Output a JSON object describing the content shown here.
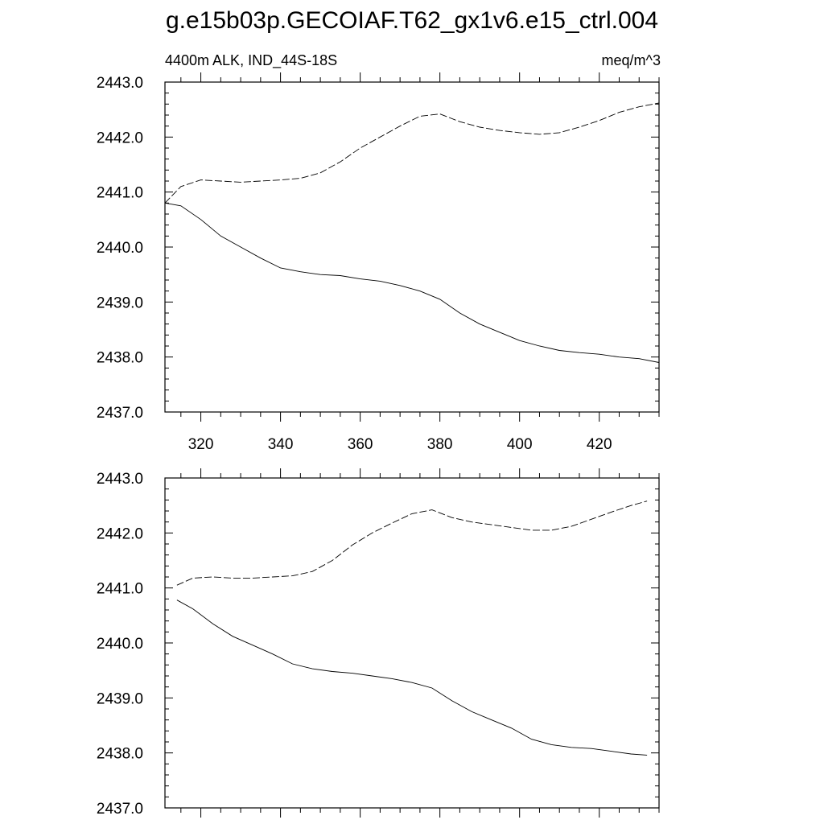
{
  "title": "g.e15b03p.GECOIAF.T62_gx1v6.e15_ctrl.004",
  "left_string": "4400m ALK, IND_44S-18S",
  "right_string": "meq/m^3",
  "chart_data": [
    {
      "type": "line",
      "panel": "top",
      "ylim": [
        2437.0,
        2443.0
      ],
      "xlim": [
        311,
        435
      ],
      "y_ticks": [
        "2437.0",
        "2438.0",
        "2439.0",
        "2440.0",
        "2441.0",
        "2442.0",
        "2443.0"
      ],
      "x_ticks": [
        "320",
        "340",
        "360",
        "380",
        "400",
        "420"
      ],
      "grid": false,
      "series": [
        {
          "style": "solid",
          "x": [
            311,
            315,
            320,
            325,
            330,
            335,
            340,
            345,
            350,
            355,
            360,
            365,
            370,
            375,
            380,
            385,
            390,
            395,
            400,
            405,
            410,
            415,
            420,
            425,
            430,
            435
          ],
          "y": [
            2440.8,
            2440.75,
            2440.5,
            2440.2,
            2440.0,
            2439.8,
            2439.62,
            2439.55,
            2439.5,
            2439.48,
            2439.42,
            2439.38,
            2439.3,
            2439.2,
            2439.05,
            2438.8,
            2438.6,
            2438.45,
            2438.3,
            2438.2,
            2438.12,
            2438.08,
            2438.05,
            2438.0,
            2437.97,
            2437.9
          ]
        },
        {
          "style": "dashed",
          "x": [
            311,
            315,
            320,
            325,
            330,
            335,
            340,
            345,
            350,
            355,
            360,
            365,
            370,
            375,
            380,
            385,
            390,
            395,
            400,
            405,
            410,
            415,
            420,
            425,
            430,
            435
          ],
          "y": [
            2440.8,
            2441.1,
            2441.22,
            2441.2,
            2441.18,
            2441.2,
            2441.22,
            2441.25,
            2441.35,
            2441.55,
            2441.8,
            2442.0,
            2442.2,
            2442.38,
            2442.42,
            2442.28,
            2442.18,
            2442.12,
            2442.08,
            2442.05,
            2442.08,
            2442.18,
            2442.3,
            2442.45,
            2442.55,
            2442.62
          ]
        }
      ]
    },
    {
      "type": "line",
      "panel": "bottom",
      "ylim": [
        2437.0,
        2443.0
      ],
      "xlim": [
        311,
        435
      ],
      "y_ticks": [
        "2437.0",
        "2438.0",
        "2439.0",
        "2440.0",
        "2441.0",
        "2442.0",
        "2443.0"
      ],
      "grid": false,
      "series": [
        {
          "style": "solid",
          "x": [
            314,
            318,
            323,
            328,
            333,
            338,
            343,
            348,
            353,
            358,
            363,
            368,
            373,
            378,
            383,
            388,
            393,
            398,
            403,
            408,
            413,
            418,
            423,
            428,
            432
          ],
          "y": [
            2440.78,
            2440.62,
            2440.35,
            2440.12,
            2439.96,
            2439.8,
            2439.62,
            2439.53,
            2439.48,
            2439.45,
            2439.4,
            2439.35,
            2439.28,
            2439.18,
            2438.95,
            2438.75,
            2438.6,
            2438.45,
            2438.25,
            2438.15,
            2438.1,
            2438.08,
            2438.03,
            2437.98,
            2437.96
          ]
        },
        {
          "style": "dashed",
          "x": [
            314,
            318,
            323,
            328,
            333,
            338,
            343,
            348,
            353,
            358,
            363,
            368,
            373,
            378,
            383,
            388,
            393,
            398,
            403,
            408,
            413,
            418,
            423,
            428,
            432
          ],
          "y": [
            2441.05,
            2441.18,
            2441.2,
            2441.18,
            2441.18,
            2441.2,
            2441.22,
            2441.3,
            2441.5,
            2441.78,
            2442.0,
            2442.18,
            2442.35,
            2442.42,
            2442.28,
            2442.2,
            2442.15,
            2442.1,
            2442.05,
            2442.05,
            2442.12,
            2442.25,
            2442.38,
            2442.5,
            2442.58
          ]
        }
      ]
    }
  ]
}
